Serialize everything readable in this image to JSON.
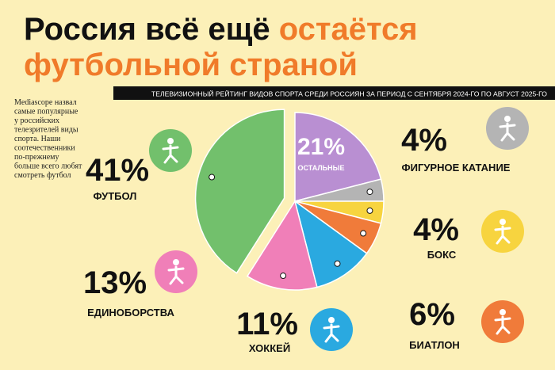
{
  "chart_data": {
    "type": "pie",
    "title_parts": [
      "Россия всё ещё",
      "остаётся",
      "футбольной страной"
    ],
    "subtitle": "ТЕЛЕВИЗИОННЫЙ РЕЙТИНГ ВИДОВ СПОРТА СРЕДИ РОССИЯН ЗА ПЕРИОД С СЕНТЯБРЯ 2024-ГО ПО АВГУСТ 2025-ГО",
    "note_lines": [
      "Mediascope назвал",
      "самые популярные",
      "у российских",
      "телезрителей виды",
      "спорта. Наши",
      "соотечественники",
      "по-прежнему",
      "больше всего любят",
      "смотреть футбол"
    ],
    "categories": [
      "ОСТАЛЬНЫЕ",
      "ФИГУРНОЕ КАТАНИЕ",
      "БОКС",
      "БИАТЛОН",
      "ХОККЕЙ",
      "ЕДИНОБОРСТВА",
      "ФУТБОЛ"
    ],
    "values": [
      21,
      4,
      4,
      6,
      11,
      13,
      41
    ],
    "value_labels": [
      "21%",
      "4%",
      "4%",
      "6%",
      "11%",
      "13%",
      "41%"
    ],
    "colors": [
      "#b98fd2",
      "#b4b4b4",
      "#f7d43f",
      "#f07b3a",
      "#2aa9e0",
      "#f07fb8",
      "#72c06c"
    ]
  }
}
